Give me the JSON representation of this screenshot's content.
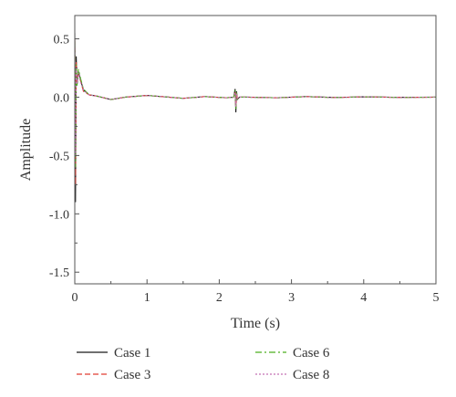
{
  "chart_data": {
    "type": "line",
    "title": "",
    "xlabel": "Time (s)",
    "ylabel": "Amplitude",
    "xlim": [
      0,
      5
    ],
    "ylim": [
      -1.6,
      0.7
    ],
    "xticks": [
      0,
      1,
      2,
      3,
      4,
      5
    ],
    "xtick_labels": [
      "0",
      "1",
      "2",
      "3",
      "4",
      "5"
    ],
    "yticks": [
      -1.5,
      -1.0,
      -0.5,
      0.0,
      0.5
    ],
    "ytick_labels": [
      "-1.5",
      "-1.0",
      "-0.5",
      "0.0",
      "0.5"
    ],
    "grid": false,
    "legend_position": "bottom, two columns below plot",
    "series": [
      {
        "name": "Case 1",
        "color": "#1a1a1a",
        "dash": "solid",
        "x": [
          0,
          0.01,
          0.02,
          0.03,
          0.05,
          0.08,
          0.12,
          0.2,
          0.3,
          0.5,
          0.7,
          1.0,
          1.3,
          1.5,
          1.8,
          2.1,
          2.2,
          2.22,
          2.23,
          2.24,
          2.25,
          2.28,
          2.4,
          2.8,
          3.2,
          3.6,
          4.0,
          4.5,
          5.0
        ],
        "y": [
          0.55,
          -0.9,
          0.35,
          0.1,
          0.22,
          0.15,
          0.06,
          0.02,
          0.01,
          -0.02,
          0.0,
          0.015,
          0.0,
          -0.01,
          0.005,
          -0.005,
          0.0,
          0.07,
          -0.13,
          0.05,
          -0.02,
          0.0,
          0.0,
          -0.005,
          0.005,
          -0.003,
          0.003,
          -0.002,
          0.0
        ]
      },
      {
        "name": "Case 3",
        "color": "#e03c31",
        "dash": "dashed",
        "x": [
          0,
          0.01,
          0.02,
          0.03,
          0.05,
          0.08,
          0.12,
          0.2,
          0.3,
          0.5,
          0.7,
          1.0,
          1.3,
          1.5,
          1.8,
          2.1,
          2.2,
          2.22,
          2.23,
          2.24,
          2.25,
          2.28,
          2.4,
          2.8,
          3.2,
          3.6,
          4.0,
          4.5,
          5.0
        ],
        "y": [
          0.5,
          -0.75,
          0.3,
          0.12,
          0.2,
          0.14,
          0.05,
          0.02,
          0.01,
          -0.02,
          0.0,
          0.015,
          0.0,
          -0.01,
          0.005,
          -0.005,
          0.0,
          0.05,
          -0.09,
          0.04,
          -0.015,
          0.0,
          0.0,
          -0.005,
          0.005,
          -0.003,
          0.003,
          -0.002,
          0.0
        ]
      },
      {
        "name": "Case 6",
        "color": "#4caf1f",
        "dash": "dashdot",
        "x": [
          0,
          0.01,
          0.02,
          0.03,
          0.05,
          0.08,
          0.12,
          0.2,
          0.3,
          0.5,
          0.7,
          1.0,
          1.3,
          1.5,
          1.8,
          2.1,
          2.2,
          2.22,
          2.23,
          2.24,
          2.25,
          2.28,
          2.4,
          2.8,
          3.2,
          3.6,
          4.0,
          4.5,
          5.0
        ],
        "y": [
          0.48,
          -0.6,
          0.28,
          0.1,
          0.24,
          0.16,
          0.07,
          0.02,
          0.01,
          -0.02,
          0.0,
          0.015,
          0.0,
          -0.01,
          0.005,
          -0.005,
          0.0,
          0.06,
          -0.1,
          0.04,
          -0.015,
          0.0,
          0.0,
          -0.005,
          0.005,
          -0.003,
          0.003,
          -0.002,
          0.0
        ]
      },
      {
        "name": "Case 8",
        "color": "#c471b5",
        "dash": "dotted",
        "x": [
          0,
          0.01,
          0.02,
          0.03,
          0.05,
          0.08,
          0.12,
          0.2,
          0.3,
          0.5,
          0.7,
          1.0,
          1.3,
          1.5,
          1.8,
          2.1,
          2.2,
          2.22,
          2.23,
          2.24,
          2.25,
          2.28,
          2.4,
          2.8,
          3.2,
          3.6,
          4.0,
          4.5,
          5.0
        ],
        "y": [
          0.45,
          -0.5,
          0.25,
          0.12,
          0.21,
          0.13,
          0.06,
          0.02,
          0.01,
          -0.02,
          0.0,
          0.015,
          0.0,
          -0.01,
          0.005,
          -0.005,
          0.0,
          0.04,
          -0.08,
          0.03,
          -0.01,
          0.0,
          0.0,
          -0.005,
          0.005,
          -0.003,
          0.003,
          -0.002,
          0.0
        ]
      }
    ]
  }
}
